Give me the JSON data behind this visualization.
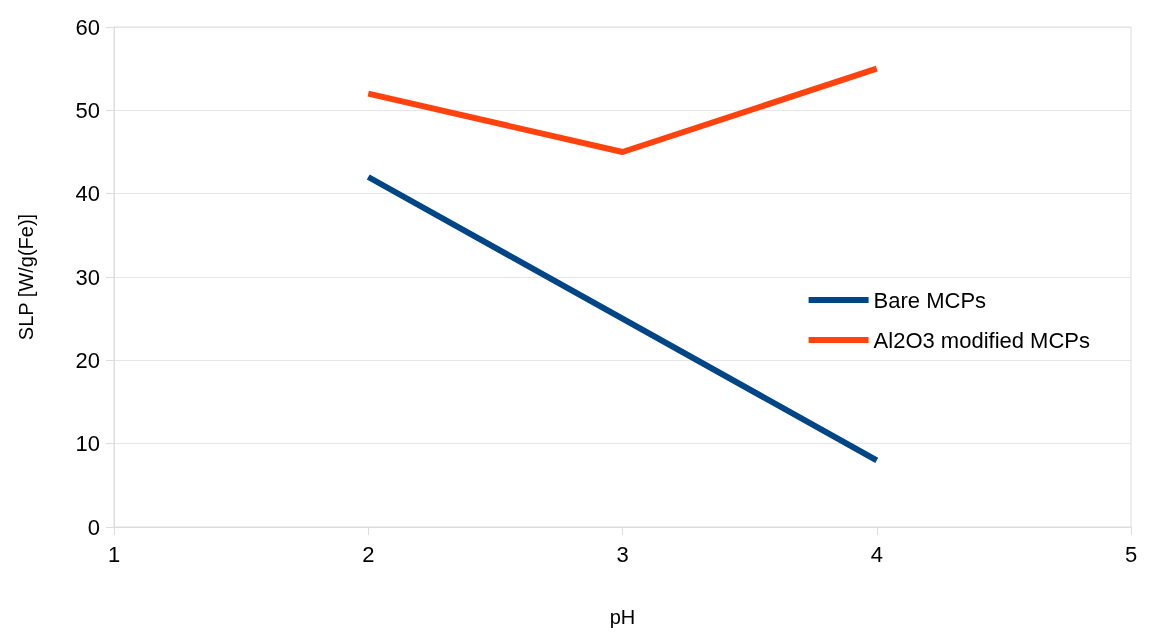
{
  "chart_data": {
    "type": "line",
    "xlabel": "pH",
    "ylabel": "SLP [W/g(Fe)]",
    "x": [
      2,
      3,
      4
    ],
    "series": [
      {
        "name": "Bare MCPs",
        "color": "#004586",
        "values": [
          42,
          25,
          8
        ]
      },
      {
        "name": "Al2O3 modified MCPs",
        "color": "#ff420e",
        "values": [
          52,
          45,
          55
        ]
      }
    ],
    "xlim": [
      1,
      5
    ],
    "xticks": [
      1,
      2,
      3,
      4,
      5
    ],
    "ylim": [
      0,
      60
    ],
    "yticks": [
      0,
      10,
      20,
      30,
      40,
      50,
      60
    ],
    "grid": "y",
    "legend": "right",
    "marker": "none",
    "line_style": "solid"
  }
}
